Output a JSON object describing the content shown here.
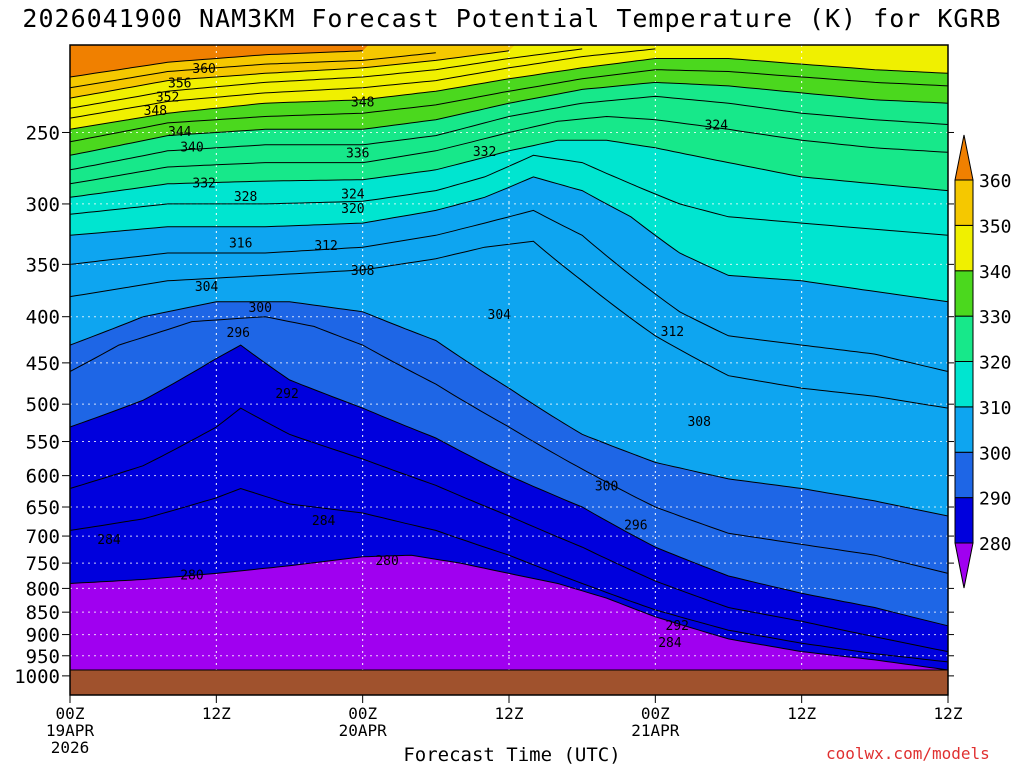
{
  "chart_data": {
    "type": "filled-contour",
    "title": "2026041900 NAM3KM Forecast Potential Temperature (K) for KGRB",
    "xlabel": "Forecast Time (UTC)",
    "ylabel": "",
    "credit": "coolwx.com/models",
    "y_axis": {
      "scale": "log-pressure",
      "range_hPa": [
        1050,
        200
      ],
      "ticks": [
        250,
        300,
        350,
        400,
        450,
        500,
        550,
        600,
        650,
        700,
        750,
        800,
        850,
        900,
        950,
        1000
      ],
      "tick_labels": [
        "250",
        "300",
        "350",
        "400",
        "450",
        "500",
        "550",
        "600",
        "650",
        "700",
        "750",
        "800",
        "850",
        "900",
        "950",
        "1000"
      ]
    },
    "x_axis": {
      "range_hours": [
        0,
        36
      ],
      "ticks": [
        {
          "hour": 0,
          "lines": [
            "00Z",
            "19APR",
            "2026"
          ]
        },
        {
          "hour": 6,
          "lines": [
            "12Z"
          ]
        },
        {
          "hour": 12,
          "lines": [
            "00Z",
            "20APR"
          ]
        },
        {
          "hour": 18,
          "lines": [
            "12Z"
          ]
        },
        {
          "hour": 24,
          "lines": [
            "00Z",
            "21APR"
          ]
        },
        {
          "hour": 30,
          "lines": [
            "12Z"
          ]
        }
      ]
    },
    "colorbar": {
      "levels": [
        280,
        290,
        300,
        310,
        320,
        330,
        340,
        350,
        360
      ],
      "labels": [
        "280",
        "290",
        "300",
        "310",
        "320",
        "330",
        "340",
        "350",
        "360"
      ],
      "colors": [
        "#a000f0",
        "#0000dd",
        "#1e66e6",
        "#0ea5f0",
        "#00e5d0",
        "#17e88a",
        "#4bd81e",
        "#f0f000",
        "#f5c800",
        "#f08000"
      ]
    },
    "ground": {
      "color": "#a0522d",
      "pressure_hPa": 985
    },
    "contour_labels": [
      {
        "text": "360",
        "hour": 5.5,
        "p": 212
      },
      {
        "text": "356",
        "hour": 4.5,
        "p": 220
      },
      {
        "text": "352",
        "hour": 4.0,
        "p": 228
      },
      {
        "text": "348",
        "hour": 3.5,
        "p": 236
      },
      {
        "text": "348",
        "hour": 12.0,
        "p": 231
      },
      {
        "text": "344",
        "hour": 4.5,
        "p": 249
      },
      {
        "text": "340",
        "hour": 5.0,
        "p": 259
      },
      {
        "text": "336",
        "hour": 11.8,
        "p": 263
      },
      {
        "text": "332",
        "hour": 17.0,
        "p": 262
      },
      {
        "text": "324",
        "hour": 26.5,
        "p": 245
      },
      {
        "text": "332",
        "hour": 5.5,
        "p": 284
      },
      {
        "text": "328",
        "hour": 7.2,
        "p": 294
      },
      {
        "text": "324",
        "hour": 11.6,
        "p": 292
      },
      {
        "text": "320",
        "hour": 11.6,
        "p": 303
      },
      {
        "text": "316",
        "hour": 7.0,
        "p": 331
      },
      {
        "text": "312",
        "hour": 10.5,
        "p": 333
      },
      {
        "text": "308",
        "hour": 12.0,
        "p": 355
      },
      {
        "text": "304",
        "hour": 5.6,
        "p": 370
      },
      {
        "text": "300",
        "hour": 7.8,
        "p": 390
      },
      {
        "text": "304",
        "hour": 17.6,
        "p": 397
      },
      {
        "text": "296",
        "hour": 6.9,
        "p": 416
      },
      {
        "text": "312",
        "hour": 24.7,
        "p": 415
      },
      {
        "text": "292",
        "hour": 8.9,
        "p": 486
      },
      {
        "text": "308",
        "hour": 25.8,
        "p": 522
      },
      {
        "text": "300",
        "hour": 22.0,
        "p": 615
      },
      {
        "text": "284",
        "hour": 10.4,
        "p": 672
      },
      {
        "text": "296",
        "hour": 23.2,
        "p": 680
      },
      {
        "text": "284",
        "hour": 1.6,
        "p": 705
      },
      {
        "text": "280",
        "hour": 5.0,
        "p": 772
      },
      {
        "text": "280",
        "hour": 13.0,
        "p": 744
      },
      {
        "text": "292",
        "hour": 24.9,
        "p": 878
      },
      {
        "text": "284",
        "hour": 24.6,
        "p": 917
      }
    ],
    "isentropes": [
      {
        "theta": 280,
        "points": [
          [
            0,
            790
          ],
          [
            3,
            782
          ],
          [
            6,
            770
          ],
          [
            9,
            755
          ],
          [
            12,
            738
          ],
          [
            14,
            735
          ],
          [
            16,
            750
          ],
          [
            18,
            770
          ],
          [
            20,
            790
          ],
          [
            22,
            820
          ],
          [
            24,
            860
          ],
          [
            27,
            910
          ],
          [
            30,
            940
          ],
          [
            33,
            960
          ],
          [
            36,
            985
          ]
        ]
      },
      {
        "theta": 284,
        "points": [
          [
            0,
            690
          ],
          [
            3,
            670
          ],
          [
            6,
            635
          ],
          [
            7,
            620
          ],
          [
            9,
            645
          ],
          [
            12,
            660
          ],
          [
            15,
            690
          ],
          [
            18,
            735
          ],
          [
            21,
            790
          ],
          [
            24,
            845
          ],
          [
            27,
            890
          ],
          [
            30,
            920
          ],
          [
            33,
            945
          ],
          [
            36,
            965
          ]
        ]
      },
      {
        "theta": 288,
        "points": [
          [
            0,
            620
          ],
          [
            3,
            585
          ],
          [
            6,
            530
          ],
          [
            7,
            505
          ],
          [
            9,
            540
          ],
          [
            12,
            575
          ],
          [
            15,
            615
          ],
          [
            18,
            665
          ],
          [
            21,
            720
          ],
          [
            24,
            785
          ],
          [
            27,
            840
          ],
          [
            30,
            870
          ],
          [
            33,
            905
          ],
          [
            36,
            940
          ]
        ]
      },
      {
        "theta": 292,
        "points": [
          [
            0,
            530
          ],
          [
            3,
            495
          ],
          [
            6,
            445
          ],
          [
            7,
            430
          ],
          [
            9,
            470
          ],
          [
            12,
            505
          ],
          [
            15,
            545
          ],
          [
            18,
            600
          ],
          [
            21,
            650
          ],
          [
            24,
            720
          ],
          [
            27,
            775
          ],
          [
            30,
            810
          ],
          [
            33,
            840
          ],
          [
            36,
            880
          ]
        ]
      },
      {
        "theta": 296,
        "points": [
          [
            0,
            460
          ],
          [
            2,
            430
          ],
          [
            5,
            405
          ],
          [
            8,
            400
          ],
          [
            10,
            410
          ],
          [
            12,
            430
          ],
          [
            15,
            475
          ],
          [
            18,
            530
          ],
          [
            21,
            590
          ],
          [
            24,
            650
          ],
          [
            27,
            695
          ],
          [
            30,
            715
          ],
          [
            33,
            735
          ],
          [
            36,
            770
          ]
        ]
      },
      {
        "theta": 300,
        "points": [
          [
            0,
            430
          ],
          [
            3,
            400
          ],
          [
            6,
            385
          ],
          [
            9,
            385
          ],
          [
            12,
            395
          ],
          [
            15,
            425
          ],
          [
            18,
            480
          ],
          [
            21,
            540
          ],
          [
            24,
            580
          ],
          [
            27,
            605
          ],
          [
            30,
            620
          ],
          [
            33,
            640
          ],
          [
            36,
            665
          ]
        ]
      },
      {
        "theta": 304,
        "points": [
          [
            0,
            380
          ],
          [
            4,
            365
          ],
          [
            8,
            360
          ],
          [
            12,
            355
          ],
          [
            15,
            345
          ],
          [
            17,
            335
          ],
          [
            19,
            330
          ],
          [
            21,
            365
          ],
          [
            24,
            420
          ],
          [
            27,
            465
          ],
          [
            30,
            480
          ],
          [
            33,
            490
          ],
          [
            36,
            505
          ]
        ]
      },
      {
        "theta": 308,
        "points": [
          [
            0,
            350
          ],
          [
            4,
            340
          ],
          [
            8,
            340
          ],
          [
            12,
            335
          ],
          [
            15,
            325
          ],
          [
            17,
            315
          ],
          [
            19,
            305
          ],
          [
            21,
            325
          ],
          [
            23,
            360
          ],
          [
            25,
            395
          ],
          [
            27,
            420
          ],
          [
            30,
            430
          ],
          [
            33,
            440
          ],
          [
            36,
            460
          ]
        ]
      },
      {
        "theta": 312,
        "points": [
          [
            0,
            325
          ],
          [
            4,
            318
          ],
          [
            8,
            318
          ],
          [
            12,
            315
          ],
          [
            15,
            305
          ],
          [
            17,
            295
          ],
          [
            19,
            280
          ],
          [
            21,
            290
          ],
          [
            23,
            310
          ],
          [
            25,
            340
          ],
          [
            27,
            360
          ],
          [
            30,
            365
          ],
          [
            33,
            375
          ],
          [
            36,
            385
          ]
        ]
      },
      {
        "theta": 316,
        "points": [
          [
            0,
            308
          ],
          [
            4,
            300
          ],
          [
            8,
            300
          ],
          [
            12,
            298
          ],
          [
            15,
            290
          ],
          [
            17,
            280
          ],
          [
            19,
            265
          ],
          [
            21,
            270
          ],
          [
            23,
            285
          ],
          [
            25,
            300
          ],
          [
            27,
            310
          ],
          [
            30,
            315
          ],
          [
            33,
            320
          ],
          [
            36,
            325
          ]
        ]
      },
      {
        "theta": 320,
        "points": [
          [
            0,
            295
          ],
          [
            4,
            285
          ],
          [
            8,
            283
          ],
          [
            12,
            282
          ],
          [
            15,
            275
          ],
          [
            18,
            262
          ],
          [
            20,
            255
          ],
          [
            22,
            255
          ],
          [
            24,
            260
          ],
          [
            27,
            270
          ],
          [
            30,
            280
          ],
          [
            33,
            285
          ],
          [
            36,
            290
          ]
        ]
      },
      {
        "theta": 324,
        "points": [
          [
            0,
            285
          ],
          [
            4,
            273
          ],
          [
            8,
            270
          ],
          [
            12,
            270
          ],
          [
            15,
            262
          ],
          [
            18,
            250
          ],
          [
            20,
            243
          ],
          [
            22,
            240
          ],
          [
            24,
            242
          ],
          [
            27,
            248
          ],
          [
            30,
            255
          ],
          [
            33,
            260
          ],
          [
            36,
            263
          ]
        ]
      },
      {
        "theta": 328,
        "points": [
          [
            0,
            275
          ],
          [
            4,
            262
          ],
          [
            8,
            258
          ],
          [
            12,
            258
          ],
          [
            15,
            252
          ],
          [
            18,
            240
          ],
          [
            21,
            232
          ],
          [
            24,
            228
          ],
          [
            27,
            232
          ],
          [
            30,
            238
          ],
          [
            33,
            242
          ],
          [
            36,
            245
          ]
        ]
      },
      {
        "theta": 332,
        "points": [
          [
            0,
            265
          ],
          [
            4,
            252
          ],
          [
            8,
            248
          ],
          [
            12,
            248
          ],
          [
            15,
            242
          ],
          [
            18,
            232
          ],
          [
            21,
            224
          ],
          [
            24,
            220
          ],
          [
            27,
            222
          ],
          [
            30,
            226
          ],
          [
            33,
            230
          ],
          [
            36,
            232
          ]
        ]
      },
      {
        "theta": 336,
        "points": [
          [
            0,
            256
          ],
          [
            4,
            244
          ],
          [
            8,
            240
          ],
          [
            12,
            238
          ],
          [
            15,
            233
          ],
          [
            18,
            225
          ],
          [
            21,
            218
          ],
          [
            24,
            213
          ],
          [
            27,
            214
          ],
          [
            30,
            217
          ],
          [
            33,
            220
          ],
          [
            36,
            222
          ]
        ]
      },
      {
        "theta": 340,
        "points": [
          [
            0,
            248
          ],
          [
            4,
            238
          ],
          [
            8,
            232
          ],
          [
            12,
            230
          ],
          [
            15,
            225
          ],
          [
            18,
            218
          ],
          [
            21,
            212
          ],
          [
            24,
            207
          ],
          [
            27,
            207
          ],
          [
            30,
            210
          ],
          [
            33,
            213
          ],
          [
            36,
            215
          ]
        ]
      },
      {
        "theta": 344,
        "points": [
          [
            0,
            241
          ],
          [
            4,
            231
          ],
          [
            8,
            226
          ],
          [
            12,
            223
          ],
          [
            15,
            219
          ],
          [
            18,
            212
          ],
          [
            21,
            206
          ],
          [
            24,
            202
          ]
        ]
      },
      {
        "theta": 348,
        "points": [
          [
            0,
            235
          ],
          [
            4,
            225
          ],
          [
            8,
            220
          ],
          [
            12,
            217
          ],
          [
            15,
            213
          ],
          [
            18,
            207
          ],
          [
            21,
            202
          ]
        ]
      },
      {
        "theta": 352,
        "points": [
          [
            0,
            229
          ],
          [
            4,
            219
          ],
          [
            8,
            215
          ],
          [
            12,
            212
          ],
          [
            15,
            208
          ],
          [
            18,
            203
          ]
        ]
      },
      {
        "theta": 356,
        "points": [
          [
            0,
            223
          ],
          [
            4,
            214
          ],
          [
            8,
            210
          ],
          [
            12,
            208
          ],
          [
            15,
            204
          ]
        ]
      },
      {
        "theta": 360,
        "points": [
          [
            0,
            217
          ],
          [
            4,
            209
          ],
          [
            8,
            205
          ],
          [
            12,
            203
          ]
        ]
      }
    ]
  }
}
